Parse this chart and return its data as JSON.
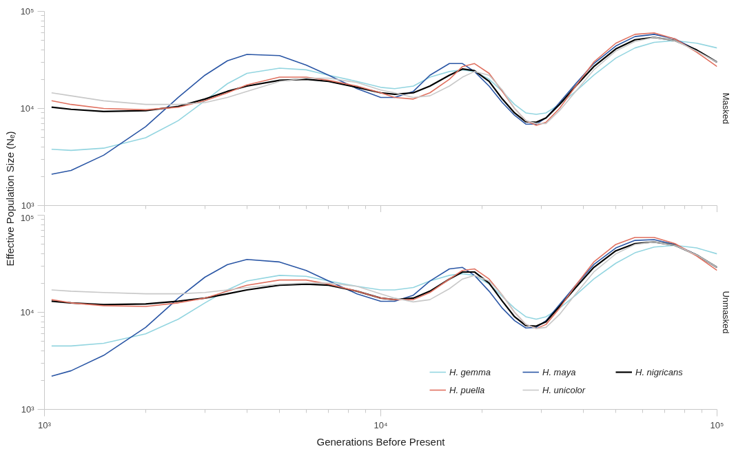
{
  "chart_data": [
    {
      "type": "line",
      "title": "Masked",
      "ylabel": "Effective Population Size (Nₑ)",
      "log": "xy",
      "grid": false,
      "legend": false,
      "tick_labels": "y",
      "xlim": [
        1000,
        100000
      ],
      "ylim": [
        1000,
        100000
      ],
      "xticks": [
        {
          "value": 1000,
          "label": null
        },
        {
          "value": 10000,
          "label": null
        },
        {
          "value": 100000,
          "label": null
        }
      ],
      "yticks": [
        {
          "value": 1000,
          "label": "10³"
        },
        {
          "value": 10000,
          "label": "10⁴"
        },
        {
          "value": 100000,
          "label": "10⁵"
        }
      ],
      "x": [
        1050,
        1200,
        1500,
        2000,
        2500,
        3000,
        3500,
        4000,
        5000,
        6000,
        7000,
        8500,
        10000,
        11000,
        12500,
        14000,
        16000,
        17500,
        19000,
        21000,
        23000,
        25000,
        27000,
        29000,
        31000,
        34000,
        38000,
        43000,
        50000,
        57000,
        65000,
        75000,
        87000,
        100000
      ],
      "series": [
        {
          "color": "#93d5e0",
          "values": [
            3800,
            3700,
            3900,
            5000,
            7500,
            12000,
            18000,
            23000,
            26000,
            25000,
            22000,
            19000,
            16500,
            16000,
            17000,
            21000,
            24000,
            25000,
            24000,
            20000,
            15000,
            11000,
            9000,
            8700,
            9000,
            11000,
            15000,
            22000,
            33000,
            42000,
            48000,
            50000,
            47000,
            42000
          ]
        },
        {
          "color": "#2a56a5",
          "values": [
            2100,
            2300,
            3300,
            6500,
            13000,
            22000,
            31000,
            36000,
            35000,
            28000,
            22000,
            16000,
            13000,
            13000,
            15000,
            22000,
            29000,
            29000,
            24000,
            17000,
            11500,
            8500,
            6900,
            6900,
            8000,
            11500,
            18000,
            29000,
            44000,
            55000,
            58000,
            52000,
            40000,
            30000
          ]
        },
        {
          "color": "#000000",
          "values": [
            10300,
            9800,
            9300,
            9500,
            10500,
            12500,
            15000,
            17000,
            19500,
            20000,
            19000,
            16500,
            14500,
            14000,
            14500,
            17000,
            22000,
            25500,
            24500,
            19000,
            12500,
            9000,
            7300,
            7200,
            8000,
            11000,
            17000,
            27000,
            41000,
            51000,
            54000,
            50000,
            40000,
            30000
          ]
        },
        {
          "color": "#e0705f",
          "values": [
            12000,
            11000,
            10000,
            9700,
            10300,
            12000,
            14500,
            17500,
            21000,
            21000,
            19500,
            17000,
            14500,
            13000,
            12500,
            14500,
            20000,
            27000,
            29000,
            23000,
            15000,
            10000,
            7500,
            6700,
            7200,
            10000,
            17000,
            30000,
            47000,
            58000,
            60000,
            52000,
            38000,
            27000
          ]
        },
        {
          "color": "#c8c8c8",
          "values": [
            14500,
            13500,
            12000,
            11000,
            11000,
            11500,
            13000,
            15000,
            19000,
            20500,
            20500,
            18500,
            15500,
            14500,
            13000,
            13500,
            17000,
            21000,
            24000,
            22000,
            15500,
            10000,
            7500,
            7000,
            7000,
            9500,
            15000,
            25000,
            39000,
            49000,
            54000,
            50000,
            39000,
            30000
          ]
        }
      ]
    },
    {
      "type": "line",
      "title": "Unmasked",
      "xlabel": "Generations Before Present",
      "log": "xy",
      "grid": false,
      "legend": "bottom right",
      "xlim": [
        1000,
        100000
      ],
      "ylim": [
        1000,
        100000
      ],
      "xticks": [
        {
          "value": 1000,
          "label": "10³"
        },
        {
          "value": 10000,
          "label": "10⁴"
        },
        {
          "value": 100000,
          "label": "10⁵"
        }
      ],
      "yticks": [
        {
          "value": 1000,
          "label": "10³"
        },
        {
          "value": 10000,
          "label": "10⁴"
        },
        {
          "value": 100000,
          "label": "10⁵"
        }
      ],
      "x": [
        1050,
        1200,
        1500,
        2000,
        2500,
        3000,
        3500,
        4000,
        5000,
        6000,
        7000,
        8500,
        10000,
        11000,
        12500,
        14000,
        16000,
        17500,
        19000,
        21000,
        23000,
        25000,
        27000,
        29000,
        31000,
        34000,
        38000,
        43000,
        50000,
        57000,
        65000,
        75000,
        87000,
        100000
      ],
      "series": [
        {
          "name": "H. gemma",
          "color": "#93d5e0",
          "values": [
            4500,
            4500,
            4800,
            6000,
            8500,
            12500,
            17000,
            21000,
            24000,
            23500,
            21000,
            18500,
            17000,
            17000,
            18000,
            21000,
            24000,
            25000,
            24000,
            19500,
            14500,
            11000,
            9000,
            8500,
            9000,
            11000,
            15000,
            22000,
            32000,
            41000,
            47000,
            49000,
            46000,
            40000
          ]
        },
        {
          "name": "H. maya",
          "color": "#2a56a5",
          "values": [
            2200,
            2500,
            3600,
            7000,
            14000,
            23000,
            31000,
            35000,
            33000,
            27000,
            21000,
            15500,
            13000,
            13000,
            15000,
            21000,
            28000,
            29000,
            24000,
            16500,
            11000,
            8200,
            6900,
            7000,
            8200,
            12000,
            19000,
            31000,
            46000,
            55000,
            56000,
            50000,
            39000,
            29000
          ]
        },
        {
          "name": "H. nigricans",
          "color": "#000000",
          "values": [
            13000,
            12500,
            12000,
            12200,
            13000,
            14000,
            15500,
            17000,
            19000,
            19500,
            19000,
            16500,
            14000,
            13500,
            14000,
            16500,
            22000,
            26000,
            26000,
            20000,
            13000,
            9000,
            7300,
            7200,
            8000,
            11500,
            18000,
            29000,
            43000,
            51000,
            53000,
            49000,
            39000,
            29000
          ]
        },
        {
          "name": "H. puella",
          "color": "#e0705f",
          "values": [
            13500,
            12500,
            11700,
            11500,
            12500,
            14000,
            16500,
            19000,
            21500,
            21500,
            19500,
            16500,
            14000,
            13500,
            13500,
            16000,
            22000,
            27000,
            28000,
            22000,
            15000,
            10000,
            7500,
            6800,
            7500,
            11000,
            19000,
            33000,
            50000,
            59000,
            59000,
            51000,
            38000,
            27000
          ]
        },
        {
          "name": "H. unicolor",
          "color": "#c8c8c8",
          "values": [
            17000,
            16500,
            16000,
            15500,
            15500,
            16000,
            17000,
            18000,
            19500,
            20000,
            20000,
            18500,
            15500,
            14000,
            12800,
            13500,
            17500,
            22000,
            24000,
            21000,
            15000,
            10000,
            7500,
            6800,
            7000,
            9500,
            15500,
            26000,
            40000,
            50000,
            53000,
            49000,
            39000,
            29000
          ]
        }
      ]
    }
  ]
}
